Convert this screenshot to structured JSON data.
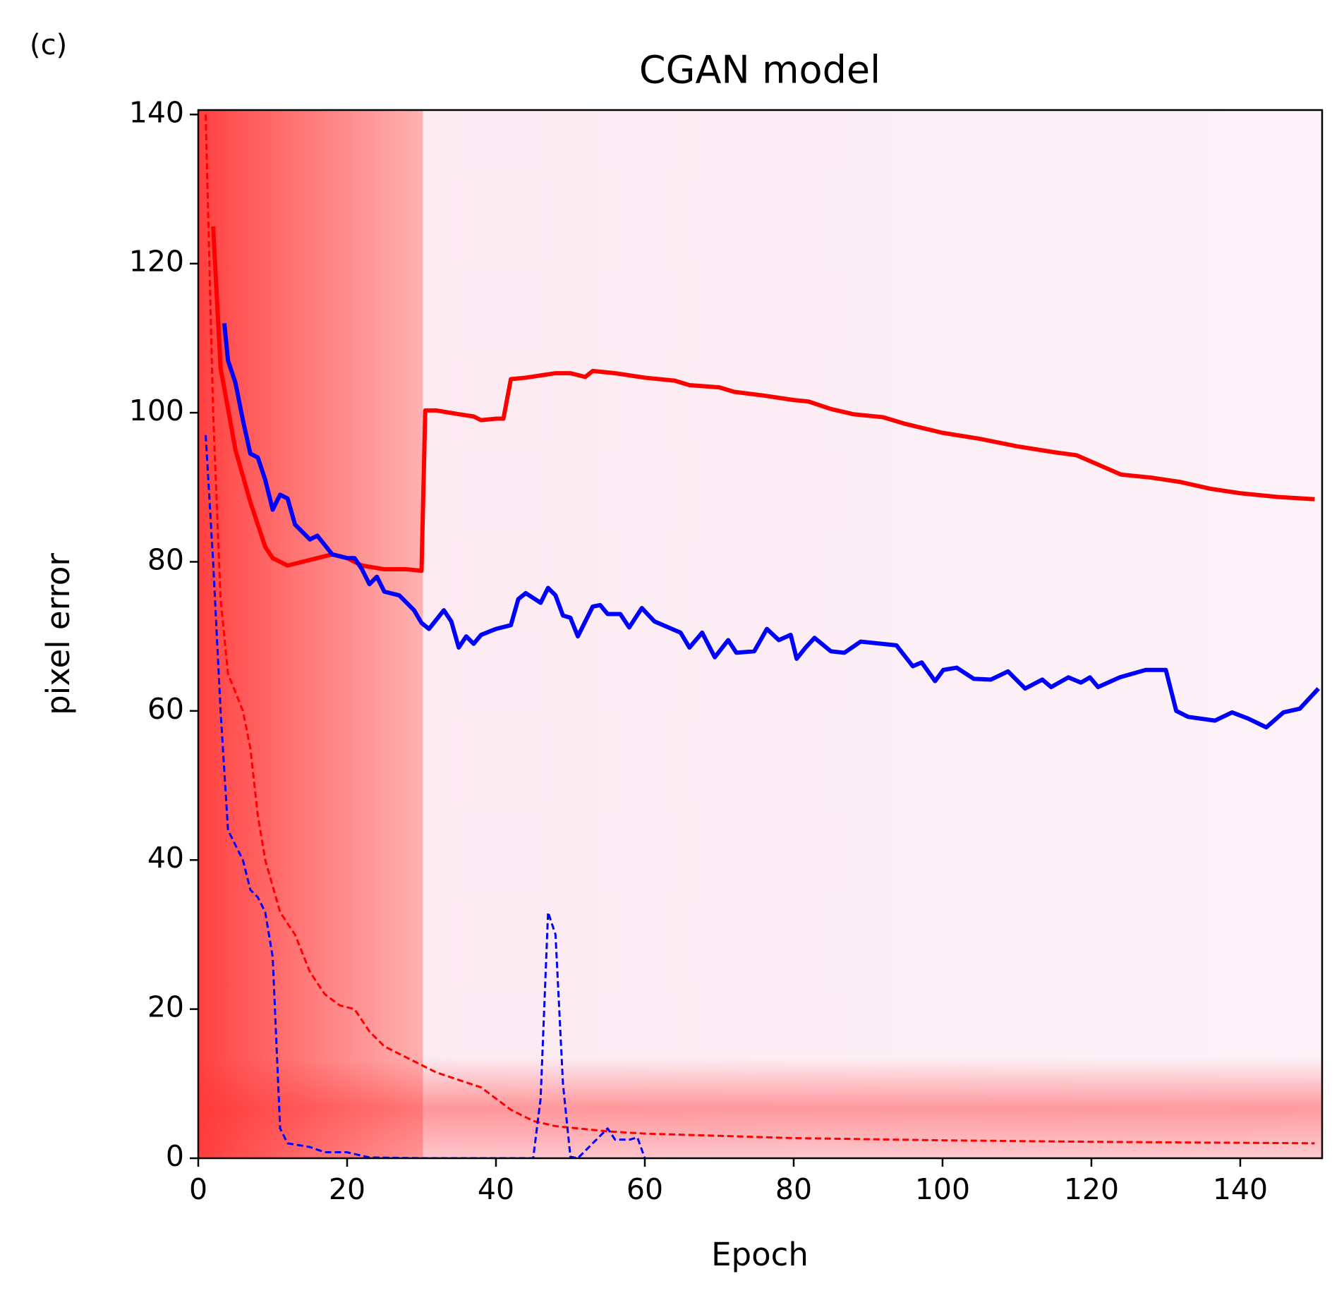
{
  "chart_data": {
    "type": "line",
    "panel_label": "(c)",
    "title": "CGAN model",
    "xlabel": "Epoch",
    "ylabel": "pixel error",
    "xlim": [
      0,
      151
    ],
    "ylim": [
      0,
      140.6
    ],
    "xticks": [
      0,
      20,
      40,
      60,
      80,
      100,
      120,
      140
    ],
    "yticks": [
      0,
      20,
      40,
      60,
      80,
      100,
      120,
      140
    ],
    "series": [
      {
        "color": "#ff0000",
        "style": "solid",
        "width": 6,
        "x": [
          2,
          3,
          5,
          7,
          9,
          10,
          12,
          14,
          16,
          18,
          20,
          22,
          25,
          28,
          30,
          30.5,
          32,
          35,
          37,
          38,
          40,
          41,
          42,
          44,
          46,
          48,
          50,
          52,
          53,
          56,
          60,
          64,
          66,
          70,
          72,
          76,
          80,
          82,
          85,
          88,
          92,
          95,
          100,
          105,
          110,
          115,
          118,
          121,
          124,
          128,
          132,
          136,
          140,
          145,
          150
        ],
        "values": [
          125,
          106,
          95,
          88,
          82,
          80.5,
          79.5,
          80,
          80.5,
          81,
          80.5,
          79.5,
          79,
          79,
          78.8,
          100.3,
          100.3,
          99.8,
          99.5,
          99,
          99.2,
          99.2,
          104.5,
          104.7,
          105,
          105.3,
          105.3,
          104.8,
          105.6,
          105.3,
          104.7,
          104.3,
          103.7,
          103.4,
          102.8,
          102.3,
          101.7,
          101.5,
          100.5,
          99.8,
          99.4,
          98.5,
          97.3,
          96.5,
          95.5,
          94.7,
          94.3,
          93,
          91.7,
          91.3,
          90.7,
          89.8,
          89.2,
          88.7,
          88.4
        ]
      },
      {
        "color": "#0000ff",
        "style": "solid",
        "width": 6,
        "x": [
          3.5,
          4,
          5,
          6,
          7,
          8,
          9,
          10,
          11,
          12,
          13,
          15,
          16,
          18,
          20,
          21,
          22,
          23,
          24,
          25,
          27,
          29,
          30,
          31,
          33,
          34,
          35,
          36,
          37,
          38,
          40,
          42,
          43,
          44,
          46,
          47,
          48,
          49,
          50,
          51,
          53,
          54,
          55,
          56.7,
          57.9,
          59.6,
          61.3,
          64.8,
          66,
          67.7,
          69.4,
          71.2,
          72.3,
          74.7,
          76.4,
          78,
          79.6,
          80.4,
          81.6,
          82.8,
          85,
          86.8,
          89,
          93.8,
          96,
          97.2,
          99,
          100.1,
          101.9,
          104.2,
          106.5,
          108.8,
          111.1,
          113.4,
          114.6,
          116.9,
          118.6,
          119.8,
          120.9,
          123.8,
          127.3,
          130,
          131.4,
          133,
          136.6,
          138.9,
          141,
          143.5,
          145.8,
          148,
          150.5
        ],
        "values": [
          112,
          107,
          104,
          99,
          94.5,
          94,
          91,
          87,
          89,
          88.5,
          85,
          83,
          83.5,
          81,
          80.5,
          80.5,
          79,
          77,
          78,
          76,
          75.5,
          73.5,
          71.8,
          71,
          73.5,
          72,
          68.5,
          70,
          69,
          70.2,
          71,
          71.5,
          75,
          75.8,
          74.5,
          76.5,
          75.5,
          72.8,
          72.5,
          70,
          74,
          74.2,
          73,
          73,
          71.2,
          73.8,
          72,
          70.5,
          68.5,
          70.5,
          67.2,
          69.5,
          67.8,
          68,
          71,
          69.5,
          70.2,
          67,
          68.5,
          69.8,
          68,
          67.8,
          69.3,
          68.8,
          66,
          66.5,
          64,
          65.5,
          65.8,
          64.3,
          64.2,
          65.3,
          63,
          64.2,
          63.2,
          64.5,
          63.8,
          64.5,
          63.2,
          64.5,
          65.5,
          65.5,
          60,
          59.2,
          58.7,
          59.8,
          59,
          57.8,
          59.8,
          60.3,
          63
        ]
      },
      {
        "color": "#ff0000",
        "style": "dashed",
        "width": 3,
        "x": [
          1,
          2,
          3,
          4,
          6,
          7,
          8,
          9,
          11,
          13,
          15,
          17,
          19,
          21,
          23,
          25,
          28,
          30,
          32,
          35,
          38,
          40,
          42,
          45,
          48,
          55,
          60,
          70,
          80,
          100,
          120,
          150
        ],
        "values": [
          140,
          100,
          75,
          65,
          60,
          55,
          46,
          40,
          33,
          30,
          25,
          22,
          20.5,
          20,
          17,
          15,
          13.5,
          12.5,
          11.5,
          10.5,
          9.5,
          8,
          6.5,
          5,
          4.3,
          3.6,
          3.3,
          3,
          2.7,
          2.4,
          2.2,
          2
        ]
      },
      {
        "color": "#0000ff",
        "style": "dashed",
        "width": 3,
        "x": [
          1,
          2,
          3,
          4,
          5,
          6,
          7,
          8,
          9,
          10,
          11,
          12,
          15,
          17,
          20,
          23,
          30,
          45,
          46,
          47,
          48,
          49,
          50,
          51,
          53,
          55,
          56,
          58,
          59,
          60
        ],
        "values": [
          97,
          80,
          60,
          44,
          42,
          40,
          36,
          35,
          33,
          27,
          4,
          2,
          1.5,
          0.8,
          0.8,
          0.1,
          0,
          0,
          8,
          33,
          30,
          10,
          0.2,
          0,
          2,
          4,
          2.5,
          2.5,
          2.8,
          0
        ]
      }
    ]
  }
}
